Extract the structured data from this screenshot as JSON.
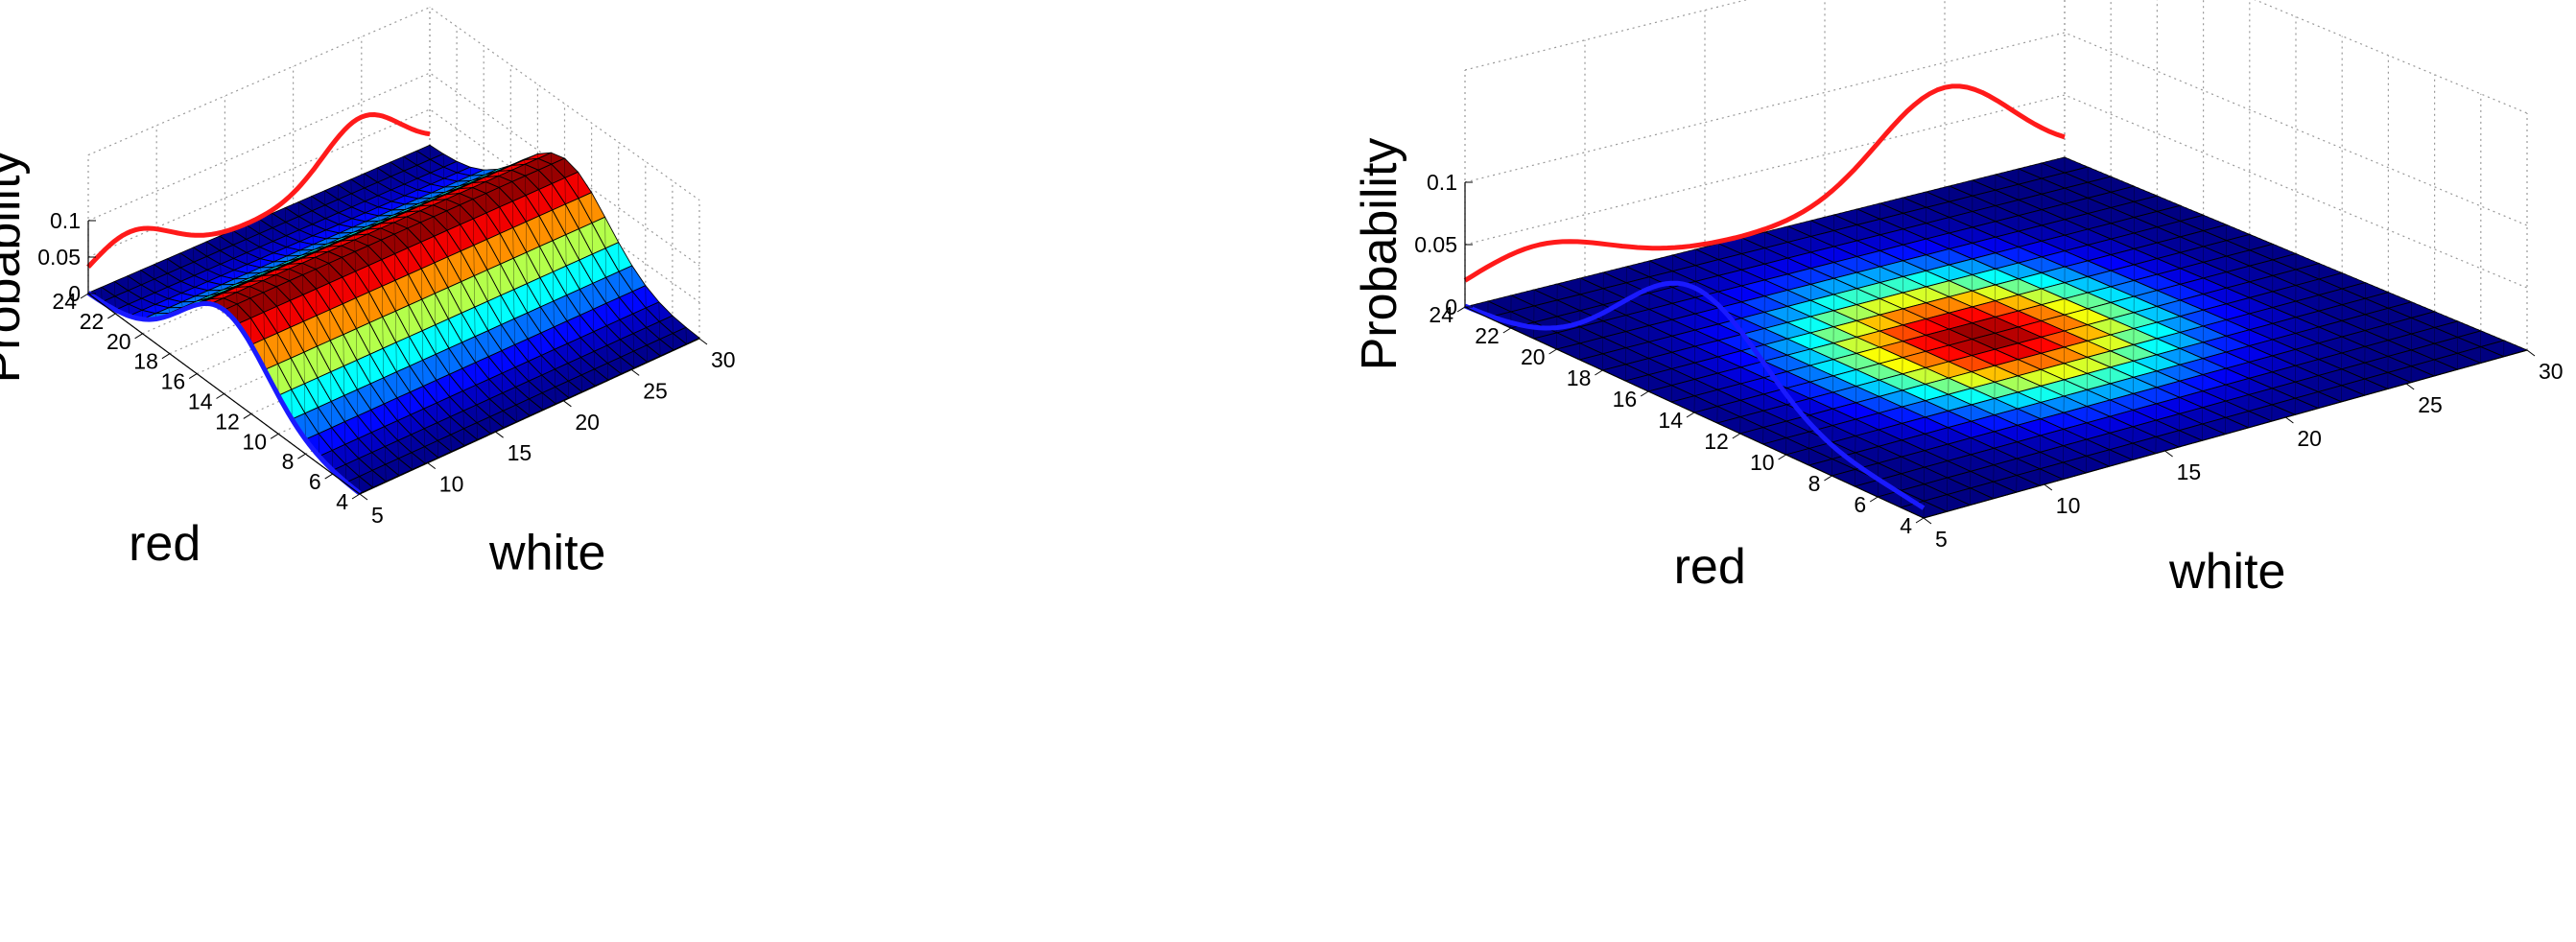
{
  "chart_data": [
    {
      "type": "surface3d",
      "title": "",
      "xlabel": "white",
      "ylabel": "red",
      "zlabel": "Probability",
      "x_ticks": [
        5,
        10,
        15,
        20,
        25,
        30
      ],
      "y_ticks": [
        4,
        6,
        8,
        10,
        12,
        14,
        16,
        18,
        20,
        22,
        24
      ],
      "z_ticks": [
        "0",
        "0.05",
        "0.1"
      ],
      "xlim": [
        5,
        30
      ],
      "ylim": [
        4,
        24
      ],
      "zlim": [
        0,
        0.1
      ],
      "colormap": "jet",
      "grid": true,
      "surface": {
        "description_of_shape": "ridge along white axis, Gaussian in red",
        "red_mean": 14,
        "red_sd": 3.2,
        "peak": 0.115,
        "white_dependence": "none"
      },
      "series": [
        {
          "color": "#1a1aff",
          "projection_plane": "back-red",
          "red_mean": 14,
          "red_sd": 3.2,
          "peak": 0.115
        },
        {
          "color": "#ff1a1a",
          "projection_plane": "back-white",
          "white_mean": 25,
          "white_sd": 2.8,
          "peak": 0.08,
          "second_mode_mean": 8,
          "second_mode_peak": 0.06
        }
      ]
    },
    {
      "type": "surface3d",
      "title": "",
      "xlabel": "white",
      "ylabel": "red",
      "zlabel": "Probability",
      "x_ticks": [
        5,
        10,
        15,
        20,
        25,
        30
      ],
      "y_ticks": [
        4,
        6,
        8,
        10,
        12,
        14,
        16,
        18,
        20,
        22,
        24
      ],
      "z_ticks": [
        "0",
        "0.05",
        "0.1"
      ],
      "xlim": [
        5,
        30
      ],
      "ylim": [
        4,
        24
      ],
      "zlim": [
        0,
        0.1
      ],
      "colormap": "jet",
      "grid": true,
      "surface": {
        "description_of_shape": "bivariate peak, drawn nearly flat",
        "red_mean": 14,
        "red_sd": 3.5,
        "white_mean": 17,
        "white_sd": 4
      },
      "series": [
        {
          "color": "#1a1aff",
          "projection_plane": "back-red",
          "red_mean": 14,
          "red_sd": 3.2,
          "peak": 0.1,
          "second_mode_mean": 6,
          "second_mode_peak": 0.01
        },
        {
          "color": "#ff1a1a",
          "projection_plane": "back-white",
          "white_mean": 25,
          "white_sd": 2.8,
          "peak": 0.08,
          "second_mode_mean": 8,
          "second_mode_peak": 0.035
        }
      ]
    }
  ]
}
